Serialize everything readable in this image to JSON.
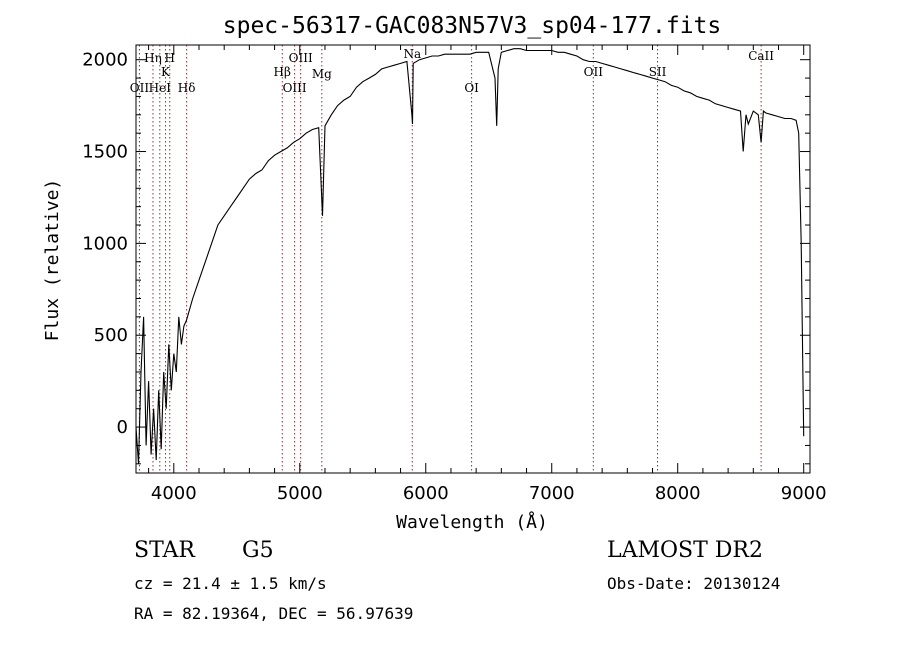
{
  "chart_data": {
    "type": "line",
    "title": "spec-56317-GAC083N57V3_sp04-177.fits",
    "xlabel": "Wavelength (Å)",
    "ylabel": "Flux (relative)",
    "xlim": [
      3700,
      9050
    ],
    "ylim": [
      -250,
      2080
    ],
    "x_ticks": [
      4000,
      5000,
      6000,
      7000,
      8000,
      9000
    ],
    "y_ticks": [
      0,
      500,
      1000,
      1500,
      2000
    ],
    "grid": false,
    "series": [
      {
        "x": [
          3700,
          3720,
          3740,
          3760,
          3780,
          3800,
          3820,
          3840,
          3860,
          3880,
          3900,
          3920,
          3940,
          3960,
          3980,
          4000,
          4020,
          4040,
          4060,
          4080,
          4100,
          4150,
          4200,
          4250,
          4300,
          4350,
          4400,
          4450,
          4500,
          4550,
          4600,
          4650,
          4700,
          4750,
          4800,
          4850,
          4900,
          4950,
          5000,
          5050,
          5100,
          5150,
          5180,
          5200,
          5250,
          5300,
          5350,
          5400,
          5450,
          5500,
          5550,
          5600,
          5650,
          5700,
          5750,
          5800,
          5850,
          5890,
          5895,
          5900,
          5950,
          6000,
          6050,
          6100,
          6150,
          6200,
          6250,
          6300,
          6350,
          6400,
          6450,
          6500,
          6550,
          6563,
          6575,
          6600,
          6650,
          6700,
          6750,
          6800,
          6850,
          6900,
          6950,
          7000,
          7050,
          7100,
          7150,
          7200,
          7250,
          7300,
          7350,
          7400,
          7450,
          7500,
          7550,
          7600,
          7650,
          7700,
          7750,
          7800,
          7850,
          7900,
          7950,
          8000,
          8050,
          8100,
          8150,
          8200,
          8250,
          8300,
          8350,
          8400,
          8450,
          8498,
          8520,
          8542,
          8560,
          8600,
          8640,
          8662,
          8680,
          8700,
          8750,
          8800,
          8850,
          8900,
          8940,
          8960,
          8980,
          9000
        ],
        "y": [
          0,
          -200,
          300,
          600,
          -100,
          250,
          -150,
          100,
          -180,
          200,
          -120,
          300,
          100,
          450,
          200,
          400,
          300,
          600,
          450,
          550,
          580,
          700,
          800,
          900,
          1000,
          1100,
          1150,
          1200,
          1250,
          1300,
          1350,
          1380,
          1400,
          1450,
          1480,
          1500,
          1520,
          1550,
          1570,
          1600,
          1620,
          1630,
          1150,
          1640,
          1700,
          1750,
          1780,
          1800,
          1850,
          1880,
          1900,
          1920,
          1950,
          1960,
          1970,
          1980,
          1990,
          1700,
          1650,
          1980,
          2000,
          2010,
          2020,
          2020,
          2030,
          2030,
          2030,
          2030,
          2030,
          2040,
          2040,
          2040,
          1900,
          1640,
          1950,
          2040,
          2050,
          2060,
          2060,
          2050,
          2050,
          2050,
          2050,
          2050,
          2040,
          2040,
          2030,
          2020,
          2000,
          1990,
          1990,
          1980,
          1970,
          1960,
          1950,
          1940,
          1930,
          1920,
          1910,
          1900,
          1890,
          1880,
          1860,
          1850,
          1830,
          1820,
          1800,
          1790,
          1780,
          1760,
          1750,
          1740,
          1730,
          1720,
          1500,
          1700,
          1650,
          1720,
          1700,
          1550,
          1720,
          1710,
          1700,
          1690,
          1680,
          1680,
          1670,
          1600,
          1000,
          -50
        ]
      }
    ],
    "spectral_lines": [
      {
        "label": "OII",
        "wavelength": 3727
      },
      {
        "label": "Hη",
        "wavelength": 3835
      },
      {
        "label": "HeI",
        "wavelength": 3889
      },
      {
        "label": "K",
        "wavelength": 3934
      },
      {
        "label": "H",
        "wavelength": 3968
      },
      {
        "label": "Hδ",
        "wavelength": 4102
      },
      {
        "label": "Hβ",
        "wavelength": 4861
      },
      {
        "label": "OIII",
        "wavelength": 4959
      },
      {
        "label": "OIII",
        "wavelength": 5007
      },
      {
        "label": "Mg",
        "wavelength": 5175
      },
      {
        "label": "Na",
        "wavelength": 5893
      },
      {
        "label": "OI",
        "wavelength": 6364
      },
      {
        "label": "OII",
        "wavelength": 7330
      },
      {
        "label": "SII",
        "wavelength": 7840
      },
      {
        "label": "CaII",
        "wavelength": 8662
      }
    ]
  },
  "info": {
    "object_class": "STAR",
    "subclass": "G5",
    "survey": "LAMOST DR2",
    "cz": "cz = 21.4 ± 1.5 km/s",
    "obs_date": "Obs-Date: 20130124",
    "coords": "RA =  82.19364, DEC =  56.97639"
  },
  "colors": {
    "spectrum": "#000000",
    "line_markers": "#b22222"
  }
}
